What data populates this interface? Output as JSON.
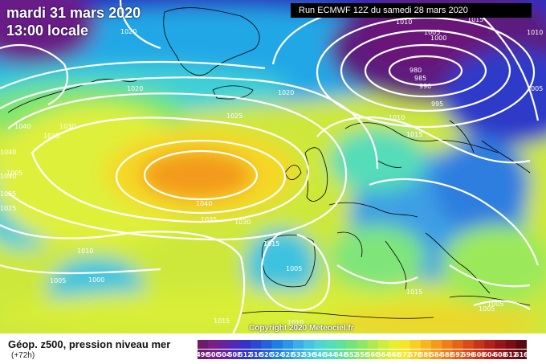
{
  "map": {
    "date_label": "mardi 31 mars 2020",
    "time_label": "13:00 locale",
    "run_label": "Run ECMWF 12Z du samedi 28 mars 2020",
    "copyright": "Copyright 2020 Meteociel.fr",
    "title": "Géop. z500, pression niveau mer",
    "lead_time": "(+72h)",
    "pressure_labels": [
      "1020",
      "1020",
      "1020",
      "1040",
      "1035",
      "1030",
      "1025",
      "1040",
      "1040",
      "1035",
      "1025",
      "1040",
      "1035",
      "1030",
      "1010",
      "1005",
      "1000",
      "1015",
      "1005",
      "1005",
      "1015",
      "1015",
      "1015",
      "1010",
      "1005",
      "1010",
      "1000",
      "980",
      "985",
      "990",
      "995",
      "1010",
      "1015",
      "1005",
      "1010",
      "1005",
      "1005"
    ],
    "scale_values": [
      "496",
      "500",
      "504",
      "508",
      "512",
      "516",
      "520",
      "524",
      "528",
      "532",
      "536",
      "540",
      "544",
      "548",
      "552",
      "556",
      "560",
      "564",
      "568",
      "572",
      "576",
      "580",
      "584",
      "588",
      "592",
      "596",
      "600",
      "604",
      "608",
      "612",
      "616"
    ],
    "scale_colors": [
      "#6e1a6e",
      "#7a1f85",
      "#67239e",
      "#4e2ab6",
      "#3533c7",
      "#2a48d4",
      "#2462dc",
      "#1f7ee2",
      "#2b96e6",
      "#3aaee8",
      "#45c3e4",
      "#4fd3d3",
      "#55dcbb",
      "#5fe19e",
      "#75e47e",
      "#8fe763",
      "#aeea4c",
      "#cdee3c",
      "#e6f030",
      "#f5e62a",
      "#f8cf25",
      "#f8b51f",
      "#f59a1a",
      "#ee7f18",
      "#e56417",
      "#d84b17",
      "#c83418",
      "#b2211a",
      "#971518",
      "#7a0e14",
      "#5a0a10"
    ]
  }
}
